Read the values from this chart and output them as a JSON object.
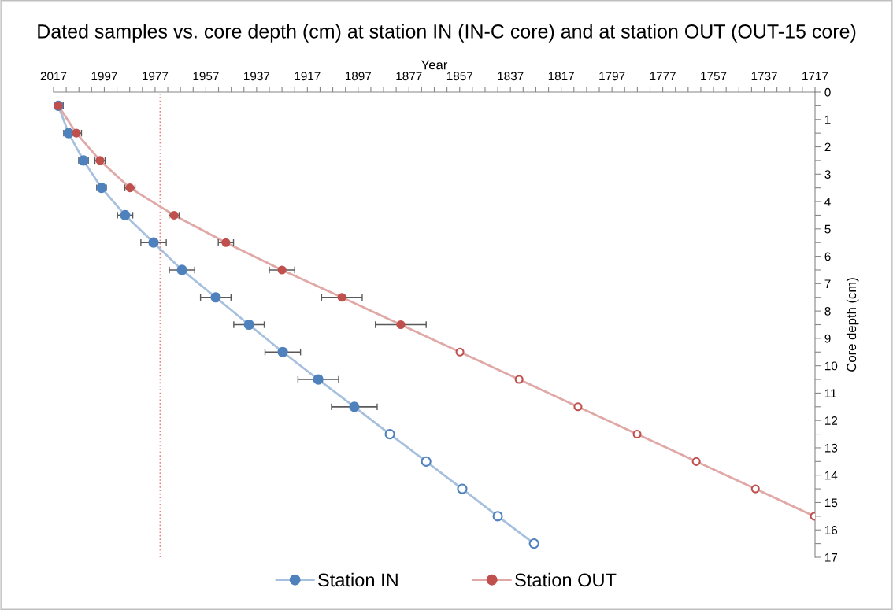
{
  "chart_data": {
    "type": "line",
    "title": "Dated samples vs. core depth (cm) at station IN (IN-C core) and at station OUT (OUT-15 core)",
    "xlabel": "Year",
    "ylabel": "Core depth (cm)",
    "marker": "circle",
    "line_style": "solid",
    "legend": "bottom",
    "series": [
      {
        "name": "Station IN",
        "color": "#4f81bd",
        "x": [
          2015.1,
          2011.1,
          2005.2,
          1998.1,
          1988.8,
          1977.6,
          1966.4,
          1953.1,
          1940.0,
          1926.7,
          1912.7,
          1898.5,
          1884.5,
          1870.2,
          1856.0,
          1842.0,
          1827.7
        ],
        "values": [
          0.5,
          1.5,
          2.5,
          3.5,
          4.5,
          5.5,
          6.5,
          7.5,
          8.5,
          9.5,
          10.5,
          11.5,
          12.5,
          13.5,
          14.5,
          15.5,
          16.5
        ],
        "xerrors": [
          1.9,
          1.9,
          1.9,
          1.9,
          3,
          5,
          5,
          6,
          6,
          7,
          8,
          9,
          null,
          null,
          null,
          null,
          null
        ],
        "colors": [
          "#4f81bd",
          "#4f81bd",
          "#4f81bd",
          "#4f81bd",
          "#4f81bd",
          "#4f81bd",
          "#4f81bd",
          "#4f81bd",
          "#4f81bd",
          "#4f81bd",
          "#4f81bd",
          "#4f81bd",
          "#ffffff",
          "#ffffff",
          "#ffffff",
          "#ffffff",
          "#ffffff"
        ]
      },
      {
        "name": "Station OUT",
        "color": "#c0504d",
        "x": [
          2015.1,
          2008.0,
          1998.7,
          1986.9,
          1969.5,
          1949.1,
          1927.0,
          1903.4,
          1880.2,
          1856.9,
          1833.6,
          1810.4,
          1787.1,
          1763.8,
          1740.5,
          1717.3
        ],
        "values": [
          0.5,
          1.5,
          2.5,
          3.5,
          4.5,
          5.5,
          6.5,
          7.5,
          8.5,
          9.5,
          10.5,
          11.5,
          12.5,
          13.5,
          14.5,
          15.5
        ],
        "xerrors": [
          1.9,
          2,
          2,
          2,
          2,
          3,
          5,
          8,
          10,
          null,
          null,
          null,
          null,
          null,
          null,
          null
        ],
        "colors": [
          "#c0504d",
          "#c0504d",
          "#c0504d",
          "#c0504d",
          "#c0504d",
          "#c0504d",
          "#c0504d",
          "#c0504d",
          "#c0504d",
          "#ffffff",
          "#ffffff",
          "#ffffff",
          "#ffffff",
          "#ffffff",
          "#ffffff",
          "#ffffff"
        ]
      }
    ],
    "xlim": [
      2017,
      1717
    ],
    "xticks": [
      2017,
      {
        "value": 2012,
        "label": null
      },
      {
        "value": 2007,
        "label": null
      },
      {
        "value": 2002,
        "label": null
      },
      1997,
      {
        "value": 1992,
        "label": null
      },
      {
        "value": 1987,
        "label": null
      },
      {
        "value": 1982,
        "label": null
      },
      1977,
      {
        "value": 1972,
        "label": null
      },
      {
        "value": 1967,
        "label": null
      },
      {
        "value": 1962,
        "label": null
      },
      1957,
      {
        "value": 1952,
        "label": null
      },
      {
        "value": 1947,
        "label": null
      },
      {
        "value": 1942,
        "label": null
      },
      1937,
      {
        "value": 1932,
        "label": null
      },
      {
        "value": 1927,
        "label": null
      },
      {
        "value": 1922,
        "label": null
      },
      1917,
      {
        "value": 1912,
        "label": null
      },
      {
        "value": 1907,
        "label": null
      },
      {
        "value": 1902,
        "label": null
      },
      1897,
      {
        "value": 1892,
        "label": null
      },
      {
        "value": 1887,
        "label": null
      },
      {
        "value": 1882,
        "label": null
      },
      1877,
      {
        "value": 1872,
        "label": null
      },
      {
        "value": 1867,
        "label": null
      },
      {
        "value": 1862,
        "label": null
      },
      1857,
      {
        "value": 1852,
        "label": null
      },
      {
        "value": 1847,
        "label": null
      },
      {
        "value": 1842,
        "label": null
      },
      1837,
      {
        "value": 1832,
        "label": null
      },
      {
        "value": 1827,
        "label": null
      },
      {
        "value": 1822,
        "label": null
      },
      1817,
      {
        "value": 1812,
        "label": null
      },
      {
        "value": 1807,
        "label": null
      },
      {
        "value": 1802,
        "label": null
      },
      1797,
      {
        "value": 1792,
        "label": null
      },
      {
        "value": 1787,
        "label": null
      },
      {
        "value": 1782,
        "label": null
      },
      1777,
      {
        "value": 1772,
        "label": null
      },
      {
        "value": 1767,
        "label": null
      },
      {
        "value": 1762,
        "label": null
      },
      1757,
      {
        "value": 1752,
        "label": null
      },
      {
        "value": 1747,
        "label": null
      },
      {
        "value": 1742,
        "label": null
      },
      1737,
      {
        "value": 1732,
        "label": null
      },
      {
        "value": 1727,
        "label": null
      },
      {
        "value": 1722,
        "label": null
      },
      1717
    ],
    "ylim": [
      17,
      0
    ],
    "yticks": [
      0,
      {
        "value": 0.5,
        "label": null
      },
      1,
      {
        "value": 1.5,
        "label": null
      },
      2,
      {
        "value": 2.5,
        "label": null
      },
      3,
      {
        "value": 3.5,
        "label": null
      },
      4,
      {
        "value": 4.5,
        "label": null
      },
      5,
      {
        "value": 5.5,
        "label": null
      },
      6,
      {
        "value": 6.5,
        "label": null
      },
      7,
      {
        "value": 7.5,
        "label": null
      },
      8,
      {
        "value": 8.5,
        "label": null
      },
      9,
      {
        "value": 9.5,
        "label": null
      },
      10,
      {
        "value": 10.5,
        "label": null
      },
      11,
      {
        "value": 11.5,
        "label": null
      },
      12,
      {
        "value": 12.5,
        "label": null
      },
      13,
      {
        "value": 13.5,
        "label": null
      },
      14,
      {
        "value": 14.5,
        "label": null
      },
      15,
      {
        "value": 15.5,
        "label": null
      },
      16,
      {
        "value": 16.5,
        "label": null
      },
      17
    ],
    "ref_lines": [
      {
        "axis": "x",
        "value": 1975,
        "label": null,
        "color": "#f08080",
        "line_style": "dotted"
      }
    ]
  }
}
